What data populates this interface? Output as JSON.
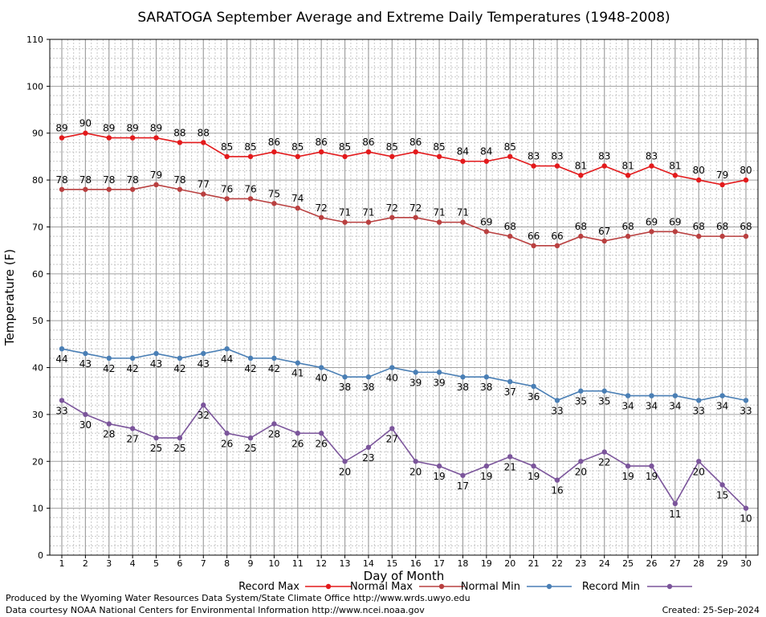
{
  "chart_data": {
    "type": "line",
    "title": "SARATOGA September Average and Extreme Daily Temperatures (1948-2008)",
    "xlabel": "Day of Month",
    "ylabel": "Temperature (F)",
    "ylim": [
      0,
      110
    ],
    "xlim": [
      1,
      30
    ],
    "yticks": [
      0,
      10,
      20,
      30,
      40,
      50,
      60,
      70,
      80,
      90,
      100,
      110
    ],
    "grid": true,
    "legend_position": "bottom",
    "x": [
      1,
      2,
      3,
      4,
      5,
      6,
      7,
      8,
      9,
      10,
      11,
      12,
      13,
      14,
      15,
      16,
      17,
      18,
      19,
      20,
      21,
      22,
      23,
      24,
      25,
      26,
      27,
      28,
      29,
      30
    ],
    "series": [
      {
        "name": "Record Max",
        "color": "#e31a1c",
        "label_position": "above",
        "values": [
          89,
          90,
          89,
          89,
          89,
          88,
          88,
          85,
          85,
          86,
          85,
          86,
          85,
          86,
          85,
          86,
          85,
          84,
          84,
          85,
          83,
          83,
          81,
          83,
          81,
          83,
          81,
          80,
          79,
          80
        ]
      },
      {
        "name": "Normal Max",
        "color": "#b94040",
        "label_position": "above",
        "values": [
          78,
          78,
          78,
          78,
          79,
          78,
          77,
          76,
          76,
          75,
          74,
          72,
          71,
          71,
          72,
          72,
          71,
          71,
          69,
          68,
          66,
          66,
          68,
          67,
          68,
          69,
          69,
          68,
          68,
          68
        ]
      },
      {
        "name": "Normal Min",
        "color": "#4a7fb5",
        "label_position": "below",
        "values": [
          44,
          43,
          42,
          42,
          43,
          42,
          43,
          44,
          42,
          42,
          41,
          40,
          38,
          38,
          40,
          39,
          39,
          38,
          38,
          37,
          36,
          33,
          35,
          35,
          34,
          34,
          34,
          33,
          34,
          33
        ]
      },
      {
        "name": "Record Min",
        "color": "#7b559b",
        "label_position": "below",
        "values": [
          33,
          30,
          28,
          27,
          25,
          25,
          32,
          26,
          25,
          28,
          26,
          26,
          20,
          23,
          27,
          20,
          19,
          17,
          19,
          21,
          19,
          16,
          20,
          22,
          19,
          19,
          11,
          20,
          15,
          10
        ]
      }
    ]
  },
  "footer": {
    "line1": "Produced by the Wyoming Water Resources Data System/State Climate Office http://www.wrds.uwyo.edu",
    "line2": "Data courtesy NOAA National Centers for Environmental Information http://www.ncei.noaa.gov",
    "created": "Created:  25-Sep-2024"
  }
}
